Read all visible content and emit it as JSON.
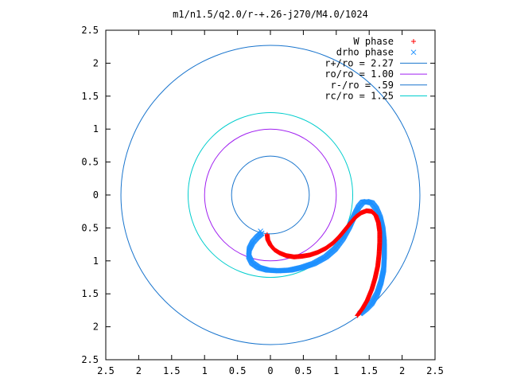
{
  "chart_data": {
    "type": "scatter",
    "title": "m1/n1.5/q2.0/r-+.26-j270/M4.0/1024",
    "xlim": [
      -2.5,
      2.5
    ],
    "ylim": [
      -2.5,
      2.5
    ],
    "x_ticks": [
      -2.5,
      -2,
      -1.5,
      -1,
      -0.5,
      0,
      0.5,
      1,
      1.5,
      2,
      2.5
    ],
    "x_tick_labels": [
      "2.5",
      "2",
      "1.5",
      "1",
      "0.5",
      "0",
      "0.5",
      "1",
      "1.5",
      "2",
      "2.5"
    ],
    "y_ticks": [
      2.5,
      2,
      1.5,
      1,
      0.5,
      0,
      -0.5,
      -1,
      -1.5,
      -2,
      -2.5
    ],
    "y_tick_labels": [
      "2.5",
      "2",
      "1.5",
      "1",
      "0.5",
      "0",
      "0.5",
      "1",
      "1.5",
      "2",
      "2.5"
    ],
    "grid": false,
    "legend_position": "top-right",
    "series": [
      {
        "name": "W phase",
        "kind": "points",
        "marker": "plus",
        "color": "#ff0000",
        "points": [
          [
            -0.05,
            -0.6
          ],
          [
            -0.04,
            -0.68
          ],
          [
            0.0,
            -0.76
          ],
          [
            0.06,
            -0.83
          ],
          [
            0.14,
            -0.88
          ],
          [
            0.24,
            -0.92
          ],
          [
            0.36,
            -0.94
          ],
          [
            0.48,
            -0.93
          ],
          [
            0.6,
            -0.91
          ],
          [
            0.72,
            -0.87
          ],
          [
            0.84,
            -0.81
          ],
          [
            0.95,
            -0.73
          ],
          [
            1.05,
            -0.63
          ],
          [
            1.14,
            -0.52
          ],
          [
            1.22,
            -0.42
          ],
          [
            1.3,
            -0.33
          ],
          [
            1.38,
            -0.27
          ],
          [
            1.46,
            -0.24
          ],
          [
            1.54,
            -0.25
          ],
          [
            1.6,
            -0.31
          ],
          [
            1.64,
            -0.42
          ],
          [
            1.66,
            -0.56
          ],
          [
            1.66,
            -0.72
          ],
          [
            1.65,
            -0.9
          ],
          [
            1.63,
            -1.08
          ],
          [
            1.59,
            -1.26
          ],
          [
            1.54,
            -1.43
          ],
          [
            1.47,
            -1.6
          ],
          [
            1.4,
            -1.72
          ],
          [
            1.32,
            -1.83
          ]
        ]
      },
      {
        "name": "drho phase",
        "kind": "points",
        "marker": "cross",
        "color": "#1e90ff",
        "points": [
          [
            -0.13,
            -0.58
          ],
          [
            -0.2,
            -0.64
          ],
          [
            -0.27,
            -0.72
          ],
          [
            -0.32,
            -0.82
          ],
          [
            -0.33,
            -0.93
          ],
          [
            -0.28,
            -1.03
          ],
          [
            -0.18,
            -1.1
          ],
          [
            -0.04,
            -1.14
          ],
          [
            0.12,
            -1.15
          ],
          [
            0.3,
            -1.14
          ],
          [
            0.48,
            -1.1
          ],
          [
            0.66,
            -1.04
          ],
          [
            0.84,
            -0.94
          ],
          [
            0.98,
            -0.82
          ],
          [
            1.1,
            -0.66
          ],
          [
            1.2,
            -0.48
          ],
          [
            1.28,
            -0.3
          ],
          [
            1.34,
            -0.18
          ],
          [
            1.4,
            -0.11
          ],
          [
            1.46,
            -0.1
          ],
          [
            1.54,
            -0.12
          ],
          [
            1.61,
            -0.21
          ],
          [
            1.67,
            -0.35
          ],
          [
            1.71,
            -0.52
          ],
          [
            1.73,
            -0.72
          ],
          [
            1.73,
            -0.93
          ],
          [
            1.72,
            -1.13
          ],
          [
            1.68,
            -1.32
          ],
          [
            1.62,
            -1.5
          ],
          [
            1.54,
            -1.64
          ],
          [
            1.45,
            -1.73
          ],
          [
            1.36,
            -1.8
          ]
        ]
      },
      {
        "name": "r+/ro = 2.27",
        "kind": "circle",
        "radius": 2.27,
        "color": "#1874cd"
      },
      {
        "name": "ro/ro = 1.00",
        "kind": "circle",
        "radius": 1.0,
        "color": "#a020f0"
      },
      {
        "name": "r-/ro = .59",
        "kind": "circle",
        "radius": 0.59,
        "color": "#1874cd"
      },
      {
        "name": "rc/ro = 1.25",
        "kind": "circle",
        "radius": 1.25,
        "color": "#00cdcd"
      }
    ]
  }
}
